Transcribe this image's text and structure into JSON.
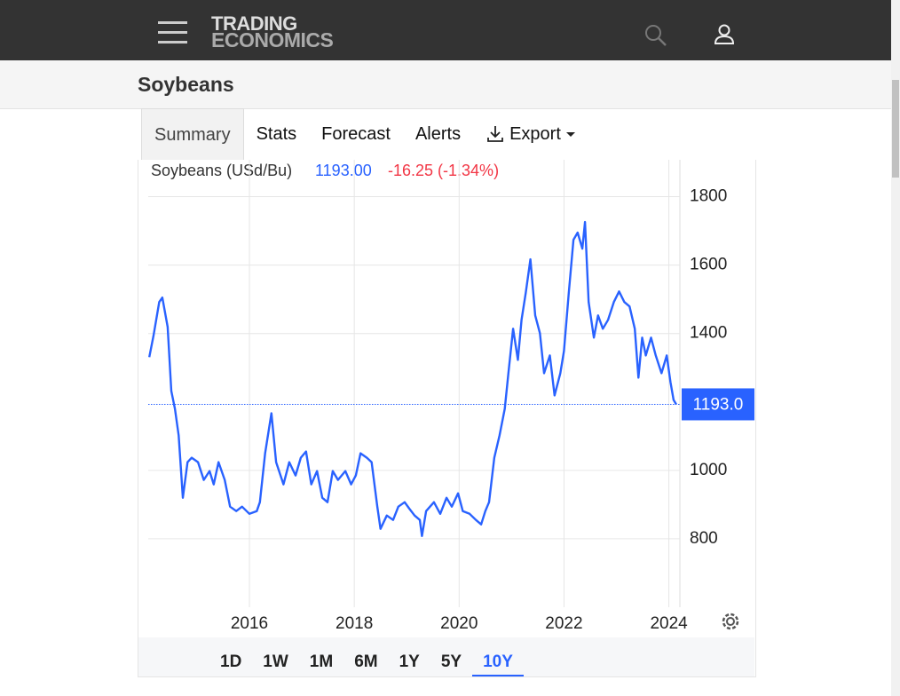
{
  "header": {
    "brand_top": "TRADING",
    "brand_bottom": "ECONOMICS"
  },
  "page_title": "Soybeans",
  "tabs": [
    "Summary",
    "Stats",
    "Forecast",
    "Alerts",
    "Export"
  ],
  "ranges": [
    "1D",
    "1W",
    "1M",
    "6M",
    "1Y",
    "5Y",
    "10Y"
  ],
  "chart_data": {
    "type": "line",
    "legend": {
      "name": "Soybeans (USd/Bu)",
      "last": "1193.00",
      "change": "-16.25 (-1.34%)"
    },
    "xlim": [
      2014.07,
      2024.21
    ],
    "xticks": [
      2016,
      2018,
      2020,
      2022,
      2024
    ],
    "ylim": [
      600,
      1900
    ],
    "yticks": [
      800,
      1000,
      1400,
      1600,
      1800
    ],
    "grid": true,
    "last": {
      "value": 1193,
      "label": "1193.0"
    },
    "series": [
      {
        "name": "Soybeans",
        "color": "#2962ff",
        "x": [
          2014.09,
          2014.17,
          2014.28,
          2014.34,
          2014.44,
          2014.51,
          2014.58,
          2014.65,
          2014.73,
          2014.82,
          2014.9,
          2015.02,
          2015.13,
          2015.24,
          2015.32,
          2015.41,
          2015.53,
          2015.63,
          2015.75,
          2015.86,
          2016.0,
          2016.14,
          2016.2,
          2016.3,
          2016.42,
          2016.51,
          2016.65,
          2016.76,
          2016.88,
          2016.98,
          2017.08,
          2017.18,
          2017.29,
          2017.39,
          2017.49,
          2017.59,
          2017.69,
          2017.83,
          2017.94,
          2018.03,
          2018.12,
          2018.24,
          2018.33,
          2018.44,
          2018.5,
          2018.62,
          2018.74,
          2018.84,
          2018.96,
          2019.05,
          2019.15,
          2019.25,
          2019.29,
          2019.37,
          2019.52,
          2019.64,
          2019.76,
          2019.86,
          2019.98,
          2020.07,
          2020.2,
          2020.32,
          2020.42,
          2020.5,
          2020.57,
          2020.67,
          2020.77,
          2020.87,
          2020.94,
          2021.03,
          2021.12,
          2021.19,
          2021.27,
          2021.36,
          2021.45,
          2021.54,
          2021.62,
          2021.73,
          2021.82,
          2021.93,
          2022.0,
          2022.09,
          2022.18,
          2022.26,
          2022.35,
          2022.4,
          2022.47,
          2022.57,
          2022.65,
          2022.74,
          2022.84,
          2022.95,
          2023.05,
          2023.15,
          2023.25,
          2023.35,
          2023.42,
          2023.49,
          2023.56,
          2023.66,
          2023.75,
          2023.86,
          2023.96,
          2024.03,
          2024.09,
          2024.14
        ],
        "values": [
          1331,
          1393,
          1492,
          1505,
          1419,
          1232,
          1180,
          1102,
          920,
          1024,
          1037,
          1024,
          972,
          998,
          959,
          1024,
          972,
          894,
          881,
          894,
          873,
          881,
          907,
          1050,
          1167,
          1024,
          959,
          1024,
          985,
          1037,
          1055,
          959,
          998,
          920,
          907,
          998,
          972,
          998,
          959,
          985,
          1050,
          1037,
          1024,
          894,
          829,
          868,
          855,
          894,
          907,
          888,
          868,
          855,
          808,
          881,
          907,
          873,
          920,
          894,
          933,
          881,
          873,
          855,
          842,
          881,
          907,
          1037,
          1102,
          1180,
          1284,
          1414,
          1323,
          1440,
          1518,
          1617,
          1453,
          1401,
          1284,
          1336,
          1219,
          1284,
          1349,
          1518,
          1674,
          1695,
          1648,
          1726,
          1492,
          1388,
          1453,
          1414,
          1440,
          1492,
          1523,
          1492,
          1479,
          1414,
          1271,
          1388,
          1336,
          1388,
          1336,
          1284,
          1336,
          1258,
          1206,
          1193
        ]
      }
    ]
  }
}
